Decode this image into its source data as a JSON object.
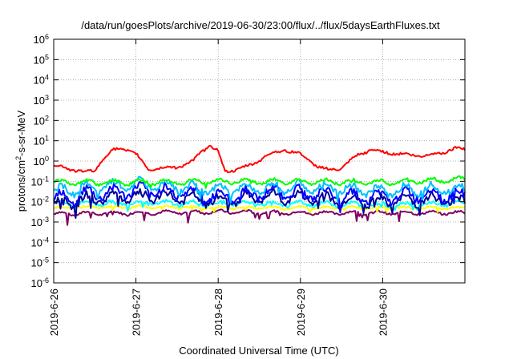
{
  "chart_data": {
    "type": "line",
    "title": "/data/run/goesPlots/archive/2019-06-30/23:00/flux/../flux/5daysEarthFluxes.txt",
    "xlabel": "Coordinated Universal Time (UTC)",
    "ylabel": {
      "base": "protons/cm",
      "sup": "2",
      "rest": "-s-sr-MeV"
    },
    "yscale": "log",
    "ylim_exp": [
      -6,
      6
    ],
    "yticks": [
      {
        "base": "10",
        "exp": "6"
      },
      {
        "base": "10",
        "exp": "5"
      },
      {
        "base": "10",
        "exp": "4"
      },
      {
        "base": "10",
        "exp": "3"
      },
      {
        "base": "10",
        "exp": "2"
      },
      {
        "base": "10",
        "exp": "1"
      },
      {
        "base": "10",
        "exp": "0"
      },
      {
        "base": "10",
        "exp": "-1"
      },
      {
        "base": "10",
        "exp": "-2"
      },
      {
        "base": "10",
        "exp": "-3"
      },
      {
        "base": "10",
        "exp": "-4"
      },
      {
        "base": "10",
        "exp": "-5"
      },
      {
        "base": "10",
        "exp": "-6"
      }
    ],
    "xlim_days": [
      0,
      5
    ],
    "xticks": [
      {
        "day": 0,
        "label": "2019-6-26"
      },
      {
        "day": 1,
        "label": "2019-6-27"
      },
      {
        "day": 2,
        "label": "2019-6-28"
      },
      {
        "day": 3,
        "label": "2019-6-29"
      },
      {
        "day": 4,
        "label": "2019-6-30"
      }
    ],
    "grid": true,
    "series": [
      {
        "color": "#800060",
        "level_exp": -2.5,
        "amp": 0.08,
        "noise": 0.05,
        "dips": 0.55,
        "points": [
          [
            0,
            -2.6
          ],
          [
            1,
            -2.55
          ],
          [
            2,
            -2.5
          ],
          [
            3,
            -2.55
          ],
          [
            4,
            -2.55
          ],
          [
            5,
            -2.55
          ]
        ]
      },
      {
        "color": "#ffff00",
        "level_exp": -2.3,
        "amp": 0.05,
        "noise": 0.04,
        "dips": 0.2,
        "points": [
          [
            0,
            -2.3
          ],
          [
            1,
            -2.25
          ],
          [
            2,
            -2.3
          ],
          [
            3,
            -2.3
          ],
          [
            4,
            -2.3
          ],
          [
            5,
            -2.3
          ]
        ]
      },
      {
        "color": "#00ffff",
        "level_exp": -2.1,
        "amp": 0.1,
        "noise": 0.08,
        "dips": 0.3,
        "points": [
          [
            0,
            -2.1
          ],
          [
            1,
            -2.05
          ],
          [
            2,
            -2.1
          ],
          [
            3,
            -2.1
          ],
          [
            4,
            -2.15
          ],
          [
            5,
            -2.1
          ]
        ]
      },
      {
        "color": "#000099",
        "level_exp": -1.9,
        "amp": 0.25,
        "noise": 0.18,
        "dips": 0.5,
        "points": [
          [
            0,
            -2.1
          ],
          [
            0.5,
            -1.85
          ],
          [
            1,
            -1.7
          ],
          [
            1.5,
            -1.8
          ],
          [
            2,
            -2.0
          ],
          [
            2.5,
            -1.75
          ],
          [
            3,
            -1.8
          ],
          [
            3.5,
            -1.95
          ],
          [
            4,
            -2.0
          ],
          [
            4.5,
            -1.9
          ],
          [
            5,
            -1.95
          ]
        ]
      },
      {
        "color": "#0000ff",
        "level_exp": -1.7,
        "amp": 0.3,
        "noise": 0.2,
        "dips": 0.45,
        "points": [
          [
            0,
            -1.8
          ],
          [
            0.5,
            -1.6
          ],
          [
            1,
            -1.45
          ],
          [
            1.5,
            -1.5
          ],
          [
            2,
            -1.8
          ],
          [
            2.5,
            -1.55
          ],
          [
            3,
            -1.55
          ],
          [
            3.5,
            -1.7
          ],
          [
            4,
            -1.8
          ],
          [
            4.5,
            -1.6
          ],
          [
            5,
            -1.7
          ]
        ]
      },
      {
        "color": "#00bfff",
        "level_exp": -1.4,
        "amp": 0.25,
        "noise": 0.15,
        "dips": 0.35,
        "points": [
          [
            0,
            -1.5
          ],
          [
            0.5,
            -1.3
          ],
          [
            1,
            -1.15
          ],
          [
            1.5,
            -1.25
          ],
          [
            2,
            -1.45
          ],
          [
            2.5,
            -1.3
          ],
          [
            3,
            -1.3
          ],
          [
            3.5,
            -1.35
          ],
          [
            4,
            -1.5
          ],
          [
            4.5,
            -1.35
          ],
          [
            5,
            -1.4
          ]
        ]
      },
      {
        "color": "#00ff00",
        "level_exp": -1.05,
        "amp": 0.12,
        "noise": 0.07,
        "dips": 0.15,
        "points": [
          [
            0,
            -1.05
          ],
          [
            1,
            -1.05
          ],
          [
            2,
            -1.0
          ],
          [
            3,
            -1.0
          ],
          [
            4,
            -1.05
          ],
          [
            5,
            -0.9
          ]
        ]
      },
      {
        "color": "#ff0000",
        "level_exp": 0.3,
        "amp": 0.05,
        "noise": 0.06,
        "dips": 0.0,
        "points": [
          [
            0,
            -0.2
          ],
          [
            0.2,
            -0.4
          ],
          [
            0.4,
            -0.55
          ],
          [
            0.5,
            -0.45
          ],
          [
            0.6,
            0.1
          ],
          [
            0.7,
            0.5
          ],
          [
            0.8,
            0.6
          ],
          [
            0.9,
            0.55
          ],
          [
            1.0,
            0.35
          ],
          [
            1.1,
            -0.15
          ],
          [
            1.15,
            -0.4
          ],
          [
            1.3,
            -0.35
          ],
          [
            1.5,
            -0.3
          ],
          [
            1.7,
            0.0
          ],
          [
            1.8,
            0.5
          ],
          [
            1.9,
            0.75
          ],
          [
            2.0,
            0.5
          ],
          [
            2.08,
            -0.5
          ],
          [
            2.2,
            -0.45
          ],
          [
            2.4,
            -0.2
          ],
          [
            2.6,
            0.3
          ],
          [
            2.8,
            0.55
          ],
          [
            3.0,
            0.35
          ],
          [
            3.2,
            -0.25
          ],
          [
            3.35,
            -0.45
          ],
          [
            3.5,
            -0.35
          ],
          [
            3.7,
            0.3
          ],
          [
            3.85,
            0.55
          ],
          [
            4.0,
            0.45
          ],
          [
            4.2,
            0.35
          ],
          [
            4.5,
            0.25
          ],
          [
            4.7,
            0.4
          ],
          [
            4.9,
            0.65
          ],
          [
            5.0,
            0.55
          ]
        ]
      }
    ]
  }
}
